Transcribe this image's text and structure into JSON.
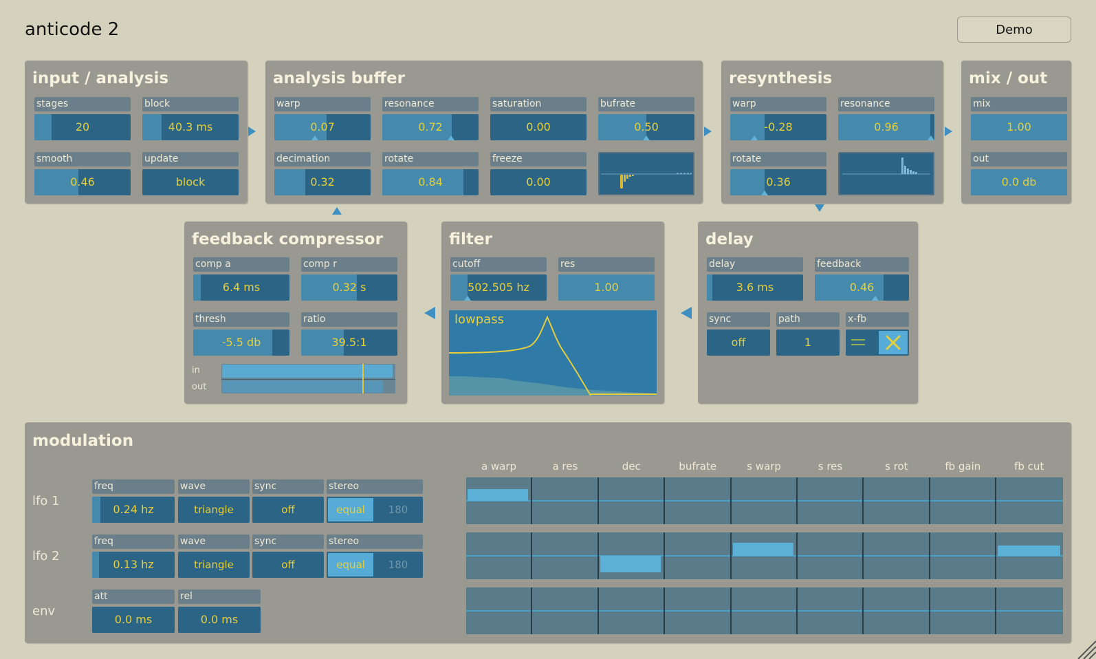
{
  "app": {
    "title": "anticode 2",
    "demo_label": "Demo"
  },
  "colors": {
    "background": "#d4d2bc",
    "panel": "#9a9991",
    "field": "#2c6486",
    "fill": "#4589ad",
    "value_text": "#e6cf3c",
    "accent": "#3f8fc2"
  },
  "input_analysis": {
    "title": "input / analysis",
    "stages": {
      "label": "stages",
      "value": "20",
      "level": 0.18
    },
    "block": {
      "label": "block",
      "value": "40.3 ms",
      "level": 0.2
    },
    "smooth": {
      "label": "smooth",
      "value": "0.46",
      "level": 0.46
    },
    "update": {
      "label": "update",
      "value": "block"
    }
  },
  "analysis_buffer": {
    "title": "analysis buffer",
    "warp": {
      "label": "warp",
      "value": "0.07",
      "level": 0.54
    },
    "resonance": {
      "label": "resonance",
      "value": "0.72",
      "level": 0.72
    },
    "saturation": {
      "label": "saturation",
      "value": "0.00",
      "level": 0.0
    },
    "bufrate": {
      "label": "bufrate",
      "value": "0.50",
      "level": 0.5
    },
    "decimation": {
      "label": "decimation",
      "value": "0.32",
      "level": 0.32
    },
    "rotate": {
      "label": "rotate",
      "value": "0.84",
      "level": 0.84
    },
    "freeze": {
      "label": "freeze",
      "value": "0.00",
      "level": 0.0
    }
  },
  "resynthesis": {
    "title": "resynthesis",
    "warp": {
      "label": "warp",
      "value": "-0.28",
      "level": 0.36
    },
    "resonance": {
      "label": "resonance",
      "value": "0.96",
      "level": 0.96
    },
    "rotate": {
      "label": "rotate",
      "value": "0.36",
      "level": 0.36
    }
  },
  "mix_out": {
    "title": "mix / out",
    "mix": {
      "label": "mix",
      "value": "1.00",
      "level": 1.0
    },
    "out": {
      "label": "out",
      "value": "0.0 db",
      "level": 1.0
    }
  },
  "feedback_compressor": {
    "title": "feedback compressor",
    "comp_a": {
      "label": "comp a",
      "value": "6.4 ms",
      "level": 0.08
    },
    "comp_r": {
      "label": "comp r",
      "value": "0.32 s",
      "level": 0.58
    },
    "thresh": {
      "label": "thresh",
      "value": "-5.5 db",
      "level": 0.82
    },
    "ratio": {
      "label": "ratio",
      "value": "39.5:1",
      "level": 0.44
    },
    "in_label": "in",
    "out_label": "out"
  },
  "filter": {
    "title": "filter",
    "cutoff": {
      "label": "cutoff",
      "value": "502.505 hz",
      "level": 0.18
    },
    "res": {
      "label": "res",
      "value": "1.00",
      "level": 1.0
    },
    "mode": "lowpass"
  },
  "delay": {
    "title": "delay",
    "delay": {
      "label": "delay",
      "value": "3.6 ms",
      "level": 0.06
    },
    "feedback": {
      "label": "feedback",
      "value": "0.46",
      "level": 0.73
    },
    "sync": {
      "label": "sync",
      "value": "off"
    },
    "path": {
      "label": "path",
      "value": "1"
    },
    "xfb": {
      "label": "x-fb"
    }
  },
  "modulation": {
    "title": "modulation",
    "headers": [
      "a warp",
      "a res",
      "dec",
      "bufrate",
      "s warp",
      "s res",
      "s rot",
      "fb gain",
      "fb cut"
    ],
    "lfo1": {
      "label": "lfo 1",
      "freq": {
        "label": "freq",
        "value": "0.24 hz",
        "level": 0.1
      },
      "wave": {
        "label": "wave",
        "value": "triangle"
      },
      "sync": {
        "label": "sync",
        "value": "off"
      },
      "stereo": {
        "label": "stereo",
        "on": "equal",
        "off": "180"
      },
      "amounts": [
        0.5,
        0,
        0,
        0,
        0,
        0,
        0,
        0,
        0
      ]
    },
    "lfo2": {
      "label": "lfo 2",
      "freq": {
        "label": "freq",
        "value": "0.13 hz",
        "level": 0.08
      },
      "wave": {
        "label": "wave",
        "value": "triangle"
      },
      "sync": {
        "label": "sync",
        "value": "off"
      },
      "stereo": {
        "label": "stereo",
        "on": "equal",
        "off": "180"
      },
      "amounts": [
        0,
        0,
        -0.7,
        0,
        0.55,
        0,
        0,
        0,
        0.45
      ]
    },
    "env": {
      "label": "env",
      "att": {
        "label": "att",
        "value": "0.0 ms",
        "level": 0
      },
      "rel": {
        "label": "rel",
        "value": "0.0 ms",
        "level": 0
      },
      "amounts": [
        0,
        0,
        0,
        0,
        0,
        0,
        0,
        0,
        0
      ]
    }
  }
}
